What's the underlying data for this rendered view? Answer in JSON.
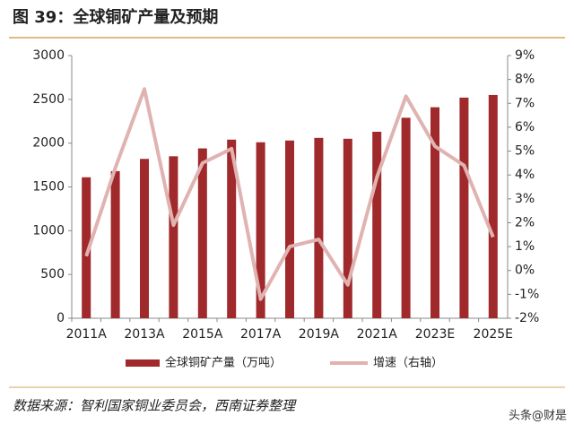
{
  "chart_data": {
    "type": "combo",
    "title": "图 39：全球铜矿产量及预期",
    "source": "数据来源：智利国家铜业委员会，西南证券整理",
    "watermark": "头条@财是",
    "categories": [
      "2011A",
      null,
      "2013A",
      null,
      "2015A",
      null,
      "2017A",
      null,
      "2019A",
      null,
      "2021A",
      null,
      "2023E",
      null,
      "2025E"
    ],
    "series": [
      {
        "name": "全球铜矿产量（万吨）",
        "type": "bar",
        "color": "#a0292b",
        "values": [
          1610,
          1680,
          1820,
          1850,
          1940,
          2040,
          2010,
          2030,
          2060,
          2050,
          2130,
          2290,
          2410,
          2520,
          2550
        ]
      },
      {
        "name": "增速（右轴）",
        "type": "line",
        "axis": "y2",
        "color": "#e0b3b1",
        "values": [
          0.6,
          4.3,
          7.6,
          1.9,
          4.5,
          5.1,
          -1.2,
          1.0,
          1.3,
          -0.6,
          3.9,
          7.3,
          5.2,
          4.4,
          1.4
        ]
      }
    ],
    "ylim": [
      0,
      3000
    ],
    "yticks": [
      0,
      500,
      1000,
      1500,
      2000,
      2500,
      3000
    ],
    "y2lim": [
      -2,
      9
    ],
    "y2ticks": [
      {
        "value": -2,
        "label": "-2%"
      },
      {
        "value": -1,
        "label": "-1%"
      },
      {
        "value": 0,
        "label": "0%"
      },
      {
        "value": 1,
        "label": "1%"
      },
      {
        "value": 2,
        "label": "2%"
      },
      {
        "value": 3,
        "label": "3%"
      },
      {
        "value": 4,
        "label": "4%"
      },
      {
        "value": 5,
        "label": "5%"
      },
      {
        "value": 6,
        "label": "6%"
      },
      {
        "value": 7,
        "label": "7%"
      },
      {
        "value": 8,
        "label": "8%"
      },
      {
        "value": 9,
        "label": "9%"
      }
    ],
    "grid": false,
    "legend": "bottom"
  }
}
